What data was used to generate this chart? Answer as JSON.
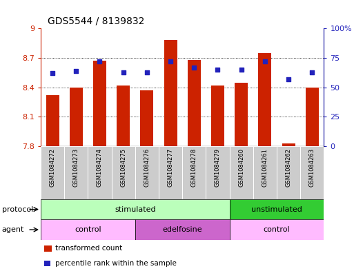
{
  "title": "GDS5544 / 8139832",
  "samples": [
    "GSM1084272",
    "GSM1084273",
    "GSM1084274",
    "GSM1084275",
    "GSM1084276",
    "GSM1084277",
    "GSM1084278",
    "GSM1084279",
    "GSM1084260",
    "GSM1084261",
    "GSM1084262",
    "GSM1084263"
  ],
  "bar_values": [
    8.32,
    8.4,
    8.67,
    8.42,
    8.37,
    8.88,
    8.68,
    8.42,
    8.45,
    8.75,
    7.83,
    8.4
  ],
  "percentile_values": [
    62,
    64,
    72,
    63,
    63,
    72,
    67,
    65,
    65,
    72,
    57,
    63
  ],
  "ylim_left": [
    7.8,
    9.0
  ],
  "ylim_right": [
    0,
    100
  ],
  "yticks_left": [
    7.8,
    8.1,
    8.4,
    8.7,
    9.0
  ],
  "yticks_right": [
    0,
    25,
    50,
    75,
    100
  ],
  "ytick_labels_left": [
    "7.8",
    "8.1",
    "8.4",
    "8.7",
    "9"
  ],
  "ytick_labels_right": [
    "0",
    "25",
    "50",
    "75",
    "100%"
  ],
  "bar_color": "#CC2200",
  "dot_color": "#2222BB",
  "bg_color": "#FFFFFF",
  "protocol_groups": [
    {
      "label": "stimulated",
      "start": 0,
      "end": 8,
      "color": "#BBFFBB"
    },
    {
      "label": "unstimulated",
      "start": 8,
      "end": 12,
      "color": "#33CC33"
    }
  ],
  "agent_groups": [
    {
      "label": "control",
      "start": 0,
      "end": 4,
      "color": "#FFBBFF"
    },
    {
      "label": "edelfosine",
      "start": 4,
      "end": 8,
      "color": "#CC66CC"
    },
    {
      "label": "control",
      "start": 8,
      "end": 12,
      "color": "#FFBBFF"
    }
  ],
  "legend_bar_label": "transformed count",
  "legend_dot_label": "percentile rank within the sample",
  "bar_width": 0.55,
  "title_fontsize": 10,
  "tick_fontsize": 8,
  "sample_fontsize": 6,
  "row_fontsize": 8,
  "legend_fontsize": 7.5
}
